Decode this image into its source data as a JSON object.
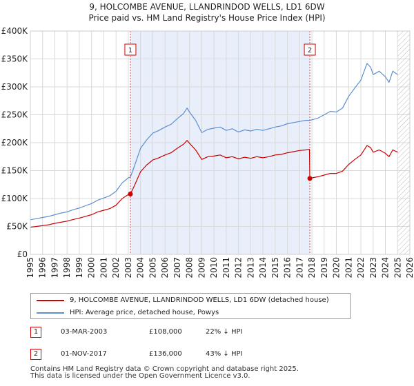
{
  "title": {
    "line1": "9, HOLCOMBE AVENUE, LLANDRINDOD WELLS, LD1 6DW",
    "line2": "Price paid vs. HM Land Registry's House Price Index (HPI)"
  },
  "colors": {
    "property": "#cc0000",
    "hpi": "#5b8fd0",
    "shade": "#e8eefa",
    "grid": "#d9d9d9",
    "hatch": "#bbbbbb",
    "sale_marker": "#cc0000"
  },
  "chart_data": {
    "type": "line",
    "title": "9, HOLCOMBE AVENUE, LLANDRINDOD WELLS, LD1 6DW — Price paid vs. HM Land Registry's House Price Index (HPI)",
    "xlabel": "",
    "ylabel": "",
    "xlim": [
      1995,
      2026
    ],
    "ylim": [
      0,
      400000
    ],
    "x_ticks": [
      1995,
      1996,
      1997,
      1998,
      1999,
      2000,
      2001,
      2002,
      2003,
      2004,
      2005,
      2006,
      2007,
      2008,
      2009,
      2010,
      2011,
      2012,
      2013,
      2014,
      2015,
      2016,
      2017,
      2018,
      2019,
      2020,
      2021,
      2022,
      2023,
      2024,
      2025,
      2026
    ],
    "y_ticks": [
      {
        "value": 0,
        "label": "£0"
      },
      {
        "value": 50000,
        "label": "£50K"
      },
      {
        "value": 100000,
        "label": "£100K"
      },
      {
        "value": 150000,
        "label": "£150K"
      },
      {
        "value": 200000,
        "label": "£200K"
      },
      {
        "value": 250000,
        "label": "£250K"
      },
      {
        "value": 300000,
        "label": "£300K"
      },
      {
        "value": 350000,
        "label": "£350K"
      },
      {
        "value": 400000,
        "label": "£400K"
      }
    ],
    "grid": true,
    "shaded_period": [
      2003.17,
      2017.83
    ],
    "future_hatch_from": 2025.0,
    "series": [
      {
        "name": "HPI: Average price, detached house, Powys",
        "color": "#5b8fd0",
        "points": [
          [
            1995.0,
            62000
          ],
          [
            1995.5,
            64000
          ],
          [
            1996.0,
            66000
          ],
          [
            1996.5,
            68000
          ],
          [
            1997.0,
            71000
          ],
          [
            1997.5,
            74000
          ],
          [
            1998.0,
            76000
          ],
          [
            1998.5,
            80000
          ],
          [
            1999.0,
            83000
          ],
          [
            1999.5,
            87000
          ],
          [
            2000.0,
            91000
          ],
          [
            2000.5,
            97000
          ],
          [
            2001.0,
            101000
          ],
          [
            2001.5,
            105000
          ],
          [
            2002.0,
            113000
          ],
          [
            2002.5,
            128000
          ],
          [
            2003.0,
            137000
          ],
          [
            2003.17,
            138500
          ],
          [
            2003.5,
            158000
          ],
          [
            2004.0,
            190000
          ],
          [
            2004.5,
            205000
          ],
          [
            2005.0,
            217000
          ],
          [
            2005.5,
            222000
          ],
          [
            2006.0,
            228000
          ],
          [
            2006.5,
            233000
          ],
          [
            2007.0,
            243000
          ],
          [
            2007.5,
            252000
          ],
          [
            2007.8,
            262000
          ],
          [
            2008.0,
            255000
          ],
          [
            2008.5,
            240000
          ],
          [
            2009.0,
            218000
          ],
          [
            2009.5,
            224000
          ],
          [
            2010.0,
            226000
          ],
          [
            2010.5,
            228000
          ],
          [
            2011.0,
            222000
          ],
          [
            2011.5,
            225000
          ],
          [
            2012.0,
            219000
          ],
          [
            2012.5,
            223000
          ],
          [
            2013.0,
            221000
          ],
          [
            2013.5,
            224000
          ],
          [
            2014.0,
            222000
          ],
          [
            2014.5,
            225000
          ],
          [
            2015.0,
            228000
          ],
          [
            2015.5,
            230000
          ],
          [
            2016.0,
            234000
          ],
          [
            2016.5,
            236000
          ],
          [
            2017.0,
            238000
          ],
          [
            2017.5,
            240000
          ],
          [
            2017.83,
            240000
          ],
          [
            2018.0,
            241000
          ],
          [
            2018.5,
            244000
          ],
          [
            2019.0,
            250000
          ],
          [
            2019.5,
            256000
          ],
          [
            2020.0,
            255000
          ],
          [
            2020.5,
            262000
          ],
          [
            2021.0,
            283000
          ],
          [
            2021.5,
            298000
          ],
          [
            2022.0,
            312000
          ],
          [
            2022.5,
            342000
          ],
          [
            2022.8,
            335000
          ],
          [
            2023.0,
            322000
          ],
          [
            2023.5,
            328000
          ],
          [
            2024.0,
            318000
          ],
          [
            2024.3,
            308000
          ],
          [
            2024.6,
            328000
          ],
          [
            2025.0,
            322000
          ]
        ]
      },
      {
        "name": "9, HOLCOMBE AVENUE, LLANDRINDOD WELLS, LD1 6DW (detached house)",
        "color": "#cc0000",
        "points": [
          [
            1995.0,
            48500
          ],
          [
            1995.5,
            50000
          ],
          [
            1996.0,
            51500
          ],
          [
            1996.5,
            53000
          ],
          [
            1997.0,
            55500
          ],
          [
            1997.5,
            57500
          ],
          [
            1998.0,
            59500
          ],
          [
            1998.5,
            62500
          ],
          [
            1999.0,
            65000
          ],
          [
            1999.5,
            68000
          ],
          [
            2000.0,
            71000
          ],
          [
            2000.5,
            76000
          ],
          [
            2001.0,
            79000
          ],
          [
            2001.5,
            82000
          ],
          [
            2002.0,
            88000
          ],
          [
            2002.5,
            100000
          ],
          [
            2003.0,
            107000
          ],
          [
            2003.17,
            108000
          ],
          [
            2003.5,
            123000
          ],
          [
            2004.0,
            148000
          ],
          [
            2004.5,
            160000
          ],
          [
            2005.0,
            169000
          ],
          [
            2005.5,
            173000
          ],
          [
            2006.0,
            178000
          ],
          [
            2006.5,
            182000
          ],
          [
            2007.0,
            190000
          ],
          [
            2007.5,
            197000
          ],
          [
            2007.8,
            204000
          ],
          [
            2008.0,
            199000
          ],
          [
            2008.5,
            187000
          ],
          [
            2009.0,
            170000
          ],
          [
            2009.5,
            175000
          ],
          [
            2010.0,
            176000
          ],
          [
            2010.5,
            178000
          ],
          [
            2011.0,
            173000
          ],
          [
            2011.5,
            175000
          ],
          [
            2012.0,
            171000
          ],
          [
            2012.5,
            174000
          ],
          [
            2013.0,
            172000
          ],
          [
            2013.5,
            175000
          ],
          [
            2014.0,
            173000
          ],
          [
            2014.5,
            175000
          ],
          [
            2015.0,
            178000
          ],
          [
            2015.5,
            179000
          ],
          [
            2016.0,
            182000
          ],
          [
            2016.5,
            184000
          ],
          [
            2017.0,
            186000
          ],
          [
            2017.5,
            187000
          ],
          [
            2017.8,
            188000
          ],
          [
            2017.83,
            136000
          ],
          [
            2018.0,
            137000
          ],
          [
            2018.5,
            139000
          ],
          [
            2019.0,
            142000
          ],
          [
            2019.5,
            145000
          ],
          [
            2020.0,
            145000
          ],
          [
            2020.5,
            149000
          ],
          [
            2021.0,
            161000
          ],
          [
            2021.5,
            170000
          ],
          [
            2022.0,
            178000
          ],
          [
            2022.5,
            195000
          ],
          [
            2022.8,
            191000
          ],
          [
            2023.0,
            183000
          ],
          [
            2023.5,
            187000
          ],
          [
            2024.0,
            181000
          ],
          [
            2024.3,
            175000
          ],
          [
            2024.6,
            187000
          ],
          [
            2025.0,
            183000
          ]
        ]
      }
    ],
    "sales": [
      {
        "id": "1",
        "x": 2003.17,
        "price": 108000
      },
      {
        "id": "2",
        "x": 2017.83,
        "price": 136000
      }
    ]
  },
  "legend": {
    "property_label": "9, HOLCOMBE AVENUE, LLANDRINDOD WELLS, LD1 6DW (detached house)",
    "hpi_label": "HPI: Average price, detached house, Powys"
  },
  "sales_table": [
    {
      "id": "1",
      "date": "03-MAR-2003",
      "price": "£108,000",
      "hpi_diff": "22% ↓ HPI"
    },
    {
      "id": "2",
      "date": "01-NOV-2017",
      "price": "£136,000",
      "hpi_diff": "43% ↓ HPI"
    }
  ],
  "footer": {
    "line1": "Contains HM Land Registry data © Crown copyright and database right 2025.",
    "line2": "This data is licensed under the Open Government Licence v3.0."
  }
}
